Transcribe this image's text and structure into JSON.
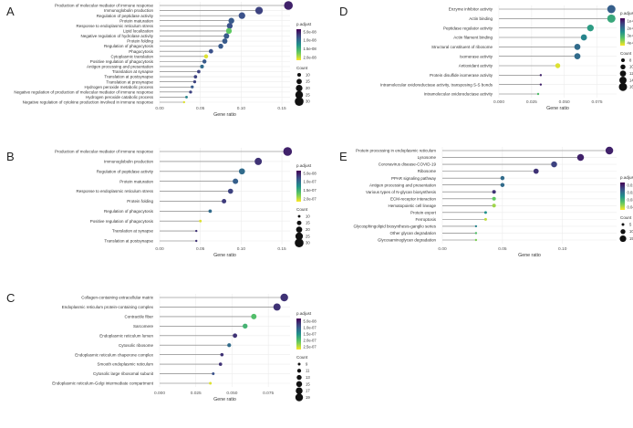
{
  "figure": {
    "colorscale": [
      "#fde725",
      "#5ec962",
      "#21918c",
      "#3b528b",
      "#440154"
    ],
    "point_color_dark": "#440154",
    "point_color_light": "#fde725"
  },
  "chart_data": [
    {
      "panel": "A",
      "type": "scatter",
      "xlabel": "Gene ratio",
      "xlim": [
        0,
        0.16
      ],
      "xticks": [
        0.0,
        0.05,
        0.1,
        0.15
      ],
      "xtick_labels": [
        "0.00",
        "0.05",
        "0.10",
        "0.15"
      ],
      "terms": [
        {
          "label": "Production of molecular mediator of immune response",
          "ratio": 0.158,
          "count": 30,
          "p_frac": 0.9
        },
        {
          "label": "Immunoglobulin production",
          "ratio": 0.122,
          "count": 24,
          "p_frac": 0.8
        },
        {
          "label": "Regulation of peptidase activity",
          "ratio": 0.101,
          "count": 20,
          "p_frac": 0.75
        },
        {
          "label": "Protein maturation",
          "ratio": 0.088,
          "count": 17,
          "p_frac": 0.72
        },
        {
          "label": "Response to endoplasmic reticulum stress",
          "ratio": 0.086,
          "count": 17,
          "p_frac": 0.75
        },
        {
          "label": "Lipid localization",
          "ratio": 0.085,
          "count": 17,
          "p_frac": 0.25
        },
        {
          "label": "Negative regulation of hydrolase activity",
          "ratio": 0.082,
          "count": 16,
          "p_frac": 0.72
        },
        {
          "label": "Protein folding",
          "ratio": 0.08,
          "count": 15,
          "p_frac": 0.72
        },
        {
          "label": "Regulation of phagocytosis",
          "ratio": 0.075,
          "count": 14,
          "p_frac": 0.72
        },
        {
          "label": "Phagocytosis",
          "ratio": 0.063,
          "count": 12,
          "p_frac": 0.75
        },
        {
          "label": "Cytoplasmic translation",
          "ratio": 0.057,
          "count": 11,
          "p_frac": 0.05
        },
        {
          "label": "Positive regulation of phagocytosis",
          "ratio": 0.055,
          "count": 11,
          "p_frac": 0.72
        },
        {
          "label": "Antigen processing and presentation",
          "ratio": 0.052,
          "count": 10,
          "p_frac": 0.65
        },
        {
          "label": "Translation at synapse",
          "ratio": 0.048,
          "count": 9,
          "p_frac": 0.8
        },
        {
          "label": "Translation at postsynapse",
          "ratio": 0.044,
          "count": 9,
          "p_frac": 0.8
        },
        {
          "label": "Translation at presynapse",
          "ratio": 0.043,
          "count": 8,
          "p_frac": 0.8
        },
        {
          "label": "Hydrogen peroxide metabolic process",
          "ratio": 0.04,
          "count": 8,
          "p_frac": 0.72
        },
        {
          "label": "Negative regulation of production of molecular mediator of immune response",
          "ratio": 0.038,
          "count": 8,
          "p_frac": 0.8
        },
        {
          "label": "Hydrogen peroxide catabolic process",
          "ratio": 0.033,
          "count": 7,
          "p_frac": 0.55
        },
        {
          "label": "Negative regulation of cytokine production involved in immune response",
          "ratio": 0.03,
          "count": 6,
          "p_frac": 0.05
        }
      ],
      "legend": {
        "color_title": "p.adjust",
        "color_labels": [
          "5.0e-08",
          "1.0e-08",
          "1.5e-08",
          "2.0e-08"
        ],
        "size_title": "Count",
        "sizes": [
          10,
          15,
          20,
          25,
          30
        ]
      }
    },
    {
      "panel": "B",
      "type": "scatter",
      "xlabel": "Gene ratio",
      "xlim": [
        0,
        0.16
      ],
      "xticks": [
        0.0,
        0.05,
        0.1,
        0.15
      ],
      "xtick_labels": [
        "0.00",
        "0.05",
        "0.10",
        "0.15"
      ],
      "terms": [
        {
          "label": "Production of molecular mediator of immune response",
          "ratio": 0.157,
          "count": 30,
          "p_frac": 0.9
        },
        {
          "label": "Immunoglobulin production",
          "ratio": 0.121,
          "count": 24,
          "p_frac": 0.85
        },
        {
          "label": "Regulation of peptidase activity",
          "ratio": 0.101,
          "count": 20,
          "p_frac": 0.65
        },
        {
          "label": "Protein maturation",
          "ratio": 0.093,
          "count": 18,
          "p_frac": 0.7
        },
        {
          "label": "Response to endoplasmic reticulum stress",
          "ratio": 0.087,
          "count": 17,
          "p_frac": 0.8
        },
        {
          "label": "Protein folding",
          "ratio": 0.079,
          "count": 15,
          "p_frac": 0.82
        },
        {
          "label": "Regulation of phagocytosis",
          "ratio": 0.062,
          "count": 12,
          "p_frac": 0.65
        },
        {
          "label": "Positive regulation of phagocytosis",
          "ratio": 0.05,
          "count": 10,
          "p_frac": 0.05
        },
        {
          "label": "Translation at synapse",
          "ratio": 0.045,
          "count": 9,
          "p_frac": 0.85
        },
        {
          "label": "Translation at postsynapse",
          "ratio": 0.045,
          "count": 9,
          "p_frac": 0.85
        }
      ],
      "legend": {
        "color_title": "p.adjust",
        "color_labels": [
          "5.0e-08",
          "1.0e-07",
          "1.5e-07",
          "2.0e-07"
        ],
        "size_title": "Count",
        "sizes": [
          10,
          15,
          20,
          25,
          30
        ]
      }
    },
    {
      "panel": "C",
      "type": "scatter",
      "xlabel": "Gene ratio",
      "xlim": [
        0,
        0.09
      ],
      "xticks": [
        0.0,
        0.025,
        0.05,
        0.075
      ],
      "xtick_labels": [
        "0.000",
        "0.025",
        "0.050",
        "0.075"
      ],
      "terms": [
        {
          "label": "Collagen-containing extracellular matrix",
          "ratio": 0.086,
          "count": 19,
          "p_frac": 0.85
        },
        {
          "label": "Endoplasmic reticulum protein-containing complex",
          "ratio": 0.081,
          "count": 18,
          "p_frac": 0.85
        },
        {
          "label": "Contractile fiber",
          "ratio": 0.065,
          "count": 14,
          "p_frac": 0.3
        },
        {
          "label": "Sarcomere",
          "ratio": 0.059,
          "count": 13,
          "p_frac": 0.35
        },
        {
          "label": "Endoplasmic reticulum lumen",
          "ratio": 0.052,
          "count": 12,
          "p_frac": 0.85
        },
        {
          "label": "Cytosolic ribosome",
          "ratio": 0.048,
          "count": 11,
          "p_frac": 0.65
        },
        {
          "label": "Endoplasmic reticulum chaperone complex",
          "ratio": 0.043,
          "count": 10,
          "p_frac": 0.85
        },
        {
          "label": "Smooth endoplasmic reticulum",
          "ratio": 0.042,
          "count": 10,
          "p_frac": 0.85
        },
        {
          "label": "Cytosolic large ribosomal subunit",
          "ratio": 0.037,
          "count": 9,
          "p_frac": 0.75
        },
        {
          "label": "Endoplasmic reticulum-Golgi intermediate compartment",
          "ratio": 0.035,
          "count": 9,
          "p_frac": 0.05
        }
      ],
      "legend": {
        "color_title": "p.adjust",
        "color_labels": [
          "5.0e-08",
          "1.0e-07",
          "1.5e-07",
          "2.0e-07",
          "2.5e-07"
        ],
        "size_title": "Count",
        "sizes": [
          9,
          11,
          13,
          15,
          17,
          19
        ]
      }
    },
    {
      "panel": "D",
      "type": "scatter",
      "xlabel": "Gene ratio",
      "xlim": [
        0,
        0.09
      ],
      "xticks": [
        0.0,
        0.025,
        0.05,
        0.075
      ],
      "xtick_labels": [
        "0.000",
        "0.025",
        "0.050",
        "0.075"
      ],
      "terms": [
        {
          "label": "Enzyme inhibitor activity",
          "ratio": 0.086,
          "count": 16,
          "p_frac": 0.7
        },
        {
          "label": "Actin binding",
          "ratio": 0.086,
          "count": 16,
          "p_frac": 0.4
        },
        {
          "label": "Peptidase regulator activity",
          "ratio": 0.07,
          "count": 13,
          "p_frac": 0.45
        },
        {
          "label": "Actin filament binding",
          "ratio": 0.065,
          "count": 12,
          "p_frac": 0.55
        },
        {
          "label": "Structural constituent of ribosome",
          "ratio": 0.06,
          "count": 12,
          "p_frac": 0.65
        },
        {
          "label": "Isomerase activity",
          "ratio": 0.06,
          "count": 12,
          "p_frac": 0.65
        },
        {
          "label": "Antioxidant activity",
          "ratio": 0.045,
          "count": 10,
          "p_frac": 0.05
        },
        {
          "label": "Protein disulfide isomerase activity",
          "ratio": 0.032,
          "count": 6,
          "p_frac": 0.9
        },
        {
          "label": "Intramolecular oxidoreductase activity, transposing S-S bonds",
          "ratio": 0.032,
          "count": 6,
          "p_frac": 0.9
        },
        {
          "label": "Intramolecular oxidoreductase activity",
          "ratio": 0.03,
          "count": 6,
          "p_frac": 0.3
        }
      ],
      "legend": {
        "color_title": "p.adjust",
        "color_labels": [
          "1e-06",
          "2e-06",
          "3e-06",
          "4e-06"
        ],
        "size_title": "Count",
        "sizes": [
          8,
          10,
          12,
          14,
          16
        ]
      }
    },
    {
      "panel": "E",
      "type": "scatter",
      "xlabel": "Gene ratio",
      "xlim": [
        0,
        0.145
      ],
      "xticks": [
        0.0,
        0.05,
        0.1
      ],
      "xtick_labels": [
        "0.00",
        "0.05",
        "0.10"
      ],
      "terms": [
        {
          "label": "Protein processing in endoplasmic reticulum",
          "ratio": 0.139,
          "count": 19,
          "p_frac": 0.9
        },
        {
          "label": "Lysosome",
          "ratio": 0.115,
          "count": 16,
          "p_frac": 0.9
        },
        {
          "label": "Coronavirus disease-COVID-19",
          "ratio": 0.093,
          "count": 13,
          "p_frac": 0.8
        },
        {
          "label": "Ribosome",
          "ratio": 0.078,
          "count": 11,
          "p_frac": 0.85
        },
        {
          "label": "PPAR signaling pathway",
          "ratio": 0.05,
          "count": 8,
          "p_frac": 0.65
        },
        {
          "label": "Antigen processing and presentation",
          "ratio": 0.05,
          "count": 8,
          "p_frac": 0.65
        },
        {
          "label": "Various types of N-glycan biosynthesis",
          "ratio": 0.043,
          "count": 7,
          "p_frac": 0.85
        },
        {
          "label": "ECM-receptor interaction",
          "ratio": 0.043,
          "count": 7,
          "p_frac": 0.25
        },
        {
          "label": "Hematopoietic cell lineage",
          "ratio": 0.043,
          "count": 7,
          "p_frac": 0.15
        },
        {
          "label": "Protein export",
          "ratio": 0.036,
          "count": 5,
          "p_frac": 0.5
        },
        {
          "label": "Ferroptosis",
          "ratio": 0.036,
          "count": 5,
          "p_frac": 0.1
        },
        {
          "label": "Glycosphingolipid biosynthesis-ganglio series",
          "ratio": 0.028,
          "count": 4,
          "p_frac": 0.55
        },
        {
          "label": "Other glycan degradation",
          "ratio": 0.028,
          "count": 4,
          "p_frac": 0.3
        },
        {
          "label": "Glycosaminoglycan degradation",
          "ratio": 0.028,
          "count": 4,
          "p_frac": 0.2
        }
      ],
      "legend": {
        "color_title": "p.adjust",
        "color_labels": [
          "0.01",
          "0.02",
          "0.03",
          "0.04"
        ],
        "size_title": "Count",
        "sizes": [
          5,
          10,
          15
        ]
      }
    }
  ]
}
